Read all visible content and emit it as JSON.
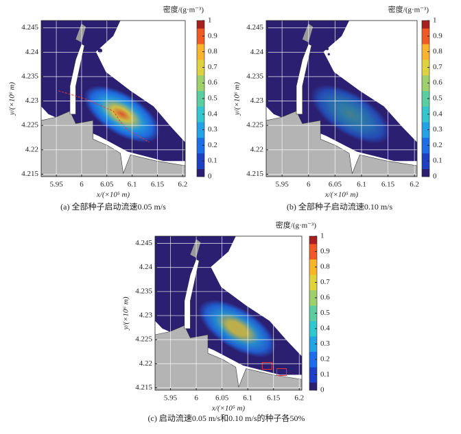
{
  "chart_data": [
    {
      "type": "heatmap",
      "caption": "(a) 全部种子启动流速0.05 m/s",
      "xlabel": "x/(×10⁵ m)",
      "ylabel": "y/(×10⁶ m)",
      "colorbar_label": "密度/(g·m⁻³)",
      "xlim": [
        5.92,
        6.205
      ],
      "ylim": [
        4.2145,
        4.2465
      ],
      "xticks": [
        5.95,
        6,
        6.05,
        6.1,
        6.15,
        6.2
      ],
      "yticks": [
        4.215,
        4.22,
        4.225,
        4.23,
        4.235,
        4.24,
        4.245
      ],
      "clim": [
        0,
        1
      ],
      "cticks": [
        0,
        0.1,
        0.2,
        0.3,
        0.4,
        0.5,
        0.6,
        0.7,
        0.8,
        0.9,
        1
      ],
      "grid": true,
      "colormap": [
        "#2b1f72",
        "#1f3fc2",
        "#1e6ee8",
        "#23a3e6",
        "#33c6cf",
        "#5ccda0",
        "#9fd06b",
        "#dfd241",
        "#f7b42c",
        "#ef5b25",
        "#a81f1f"
      ]
    },
    {
      "type": "heatmap",
      "caption": "(b) 全部种子启动流速0.10 m/s",
      "xlabel": "x/(×10⁵ m)",
      "ylabel": "y/(×10⁶ m)",
      "colorbar_label": "密度/(g·m⁻³)",
      "xlim": [
        5.92,
        6.205
      ],
      "ylim": [
        4.2145,
        4.2465
      ],
      "xticks": [
        5.95,
        6,
        6.05,
        6.1,
        6.15,
        6.2
      ],
      "yticks": [
        4.215,
        4.22,
        4.225,
        4.23,
        4.235,
        4.24,
        4.245
      ],
      "clim": [
        0,
        1
      ],
      "cticks": [
        0,
        0.1,
        0.2,
        0.3,
        0.4,
        0.5,
        0.6,
        0.7,
        0.8,
        0.9,
        1
      ],
      "grid": true,
      "colormap": [
        "#2b1f72",
        "#1f3fc2",
        "#1e6ee8",
        "#23a3e6",
        "#33c6cf",
        "#5ccda0",
        "#9fd06b",
        "#dfd241",
        "#f7b42c",
        "#ef5b25",
        "#a81f1f"
      ]
    },
    {
      "type": "heatmap",
      "caption": "(c) 启动流速0.05 m/s和0.10 m/s的种子各50%",
      "xlabel": "x/(×10⁵ m)",
      "ylabel": "y/(×10⁶ m)",
      "colorbar_label": "密度/(g·m⁻³)",
      "xlim": [
        5.92,
        6.205
      ],
      "ylim": [
        4.2145,
        4.2465
      ],
      "xticks": [
        5.95,
        6,
        6.05,
        6.1,
        6.15,
        6.2
      ],
      "yticks": [
        4.215,
        4.22,
        4.225,
        4.23,
        4.235,
        4.24,
        4.245
      ],
      "clim": [
        0,
        1
      ],
      "cticks": [
        0,
        0.1,
        0.2,
        0.3,
        0.4,
        0.5,
        0.6,
        0.7,
        0.8,
        0.9,
        1
      ],
      "grid": true,
      "colormap": [
        "#2b1f72",
        "#1f3fc2",
        "#1e6ee8",
        "#23a3e6",
        "#33c6cf",
        "#5ccda0",
        "#9fd06b",
        "#dfd241",
        "#f7b42c",
        "#ef5b25",
        "#a81f1f"
      ]
    }
  ]
}
